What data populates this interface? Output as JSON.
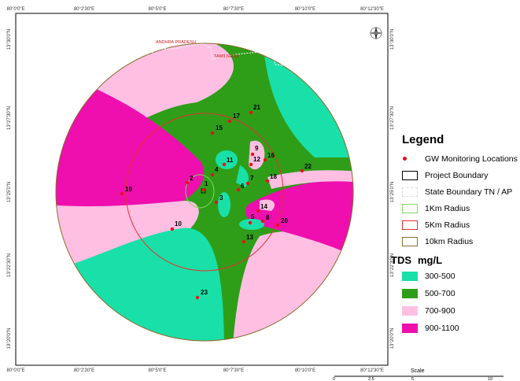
{
  "map": {
    "top_ticks": [
      "80°0'0\"E",
      "80°2'30\"E",
      "80°5'0\"E",
      "80°7'30\"E",
      "80°10'0\"E",
      "80°12'30\"E"
    ],
    "bottom_ticks": [
      "80°0'0\"E",
      "80°2'30\"E",
      "80°5'0\"E",
      "80°7'30\"E",
      "80°10'0\"E",
      "80°12'30\"E"
    ],
    "left_ticks": [
      "13°30'0\"N",
      "13°27'30\"N",
      "13°25'0\"N",
      "13°22'30\"N",
      "13°20'0\"N"
    ],
    "right_ticks": [
      "13°30'0\"N",
      "13°27'30\"N",
      "13°25'0\"N",
      "13°22'30\"N",
      "13°20'0\"N"
    ],
    "state_labels": {
      "upper": "ANDHRA PRADESH",
      "lower": "TAMILNADU"
    },
    "monitoring_point_labels": [
      "1",
      "2",
      "3",
      "4",
      "5",
      "6",
      "7",
      "8",
      "9",
      "10",
      "11",
      "12",
      "13",
      "14",
      "15",
      "16",
      "17",
      "18",
      "19",
      "20",
      "21",
      "22",
      "23"
    ],
    "compass_icon": "north-arrow-compass-icon"
  },
  "legend": {
    "title": "Legend",
    "items": [
      {
        "label": "GW Monitoring Locations",
        "symbol": "red-dot",
        "color": "#e8101c"
      },
      {
        "label": "Project Boundary",
        "symbol": "box",
        "stroke": "#000000"
      },
      {
        "label": "State Boundary TN / AP",
        "symbol": "box",
        "stroke": "#f2f2f2"
      },
      {
        "label": "1Km Radius",
        "symbol": "box",
        "stroke": "#7dd85a"
      },
      {
        "label": "5Km Radius",
        "symbol": "box",
        "stroke": "#e83030"
      },
      {
        "label": "10km Radius",
        "symbol": "box",
        "stroke": "#8b6b2c"
      }
    ],
    "tds_title": "TDS",
    "tds_unit": "mg/L",
    "tds_classes": [
      {
        "label": "300-500",
        "color": "#19e0a8"
      },
      {
        "label": "500-700",
        "color": "#2e9e18"
      },
      {
        "label": "700-900",
        "color": "#ffbfe3"
      },
      {
        "label": "900-1100",
        "color": "#ee0fae"
      }
    ]
  },
  "scale_bar": {
    "title": "Scale",
    "ticks": [
      "0",
      "2.5",
      "5",
      "10"
    ]
  }
}
